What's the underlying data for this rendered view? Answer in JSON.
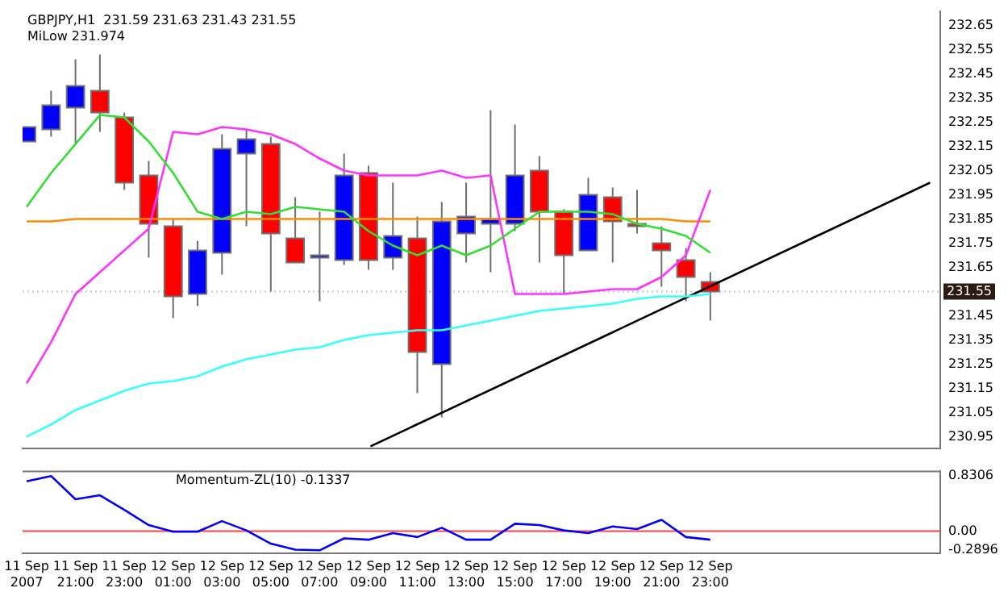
{
  "chart_data": [
    {
      "type": "candlestick",
      "title": "GBPJPY,H1  231.59 231.63 231.43 231.55",
      "subtitle": "MiLow 231.974",
      "x": [
        "2007-09-11T19:00",
        "2007-09-11T20:00",
        "2007-09-11T21:00",
        "2007-09-11T22:00",
        "2007-09-11T23:00",
        "2007-09-12T00:00",
        "2007-09-12T01:00",
        "2007-09-12T02:00",
        "2007-09-12T03:00",
        "2007-09-12T04:00",
        "2007-09-12T05:00",
        "2007-09-12T06:00",
        "2007-09-12T07:00",
        "2007-09-12T08:00",
        "2007-09-12T09:00",
        "2007-09-12T10:00",
        "2007-09-12T11:00",
        "2007-09-12T12:00",
        "2007-09-12T13:00",
        "2007-09-12T14:00",
        "2007-09-12T15:00",
        "2007-09-12T16:00",
        "2007-09-12T17:00",
        "2007-09-12T18:00",
        "2007-09-12T19:00",
        "2007-09-12T20:00",
        "2007-09-12T21:00",
        "2007-09-12T22:00",
        "2007-09-12T23:00"
      ],
      "ohlc": [
        [
          232.17,
          232.23,
          232.17,
          232.23
        ],
        [
          232.22,
          232.38,
          232.19,
          232.32
        ],
        [
          232.31,
          232.51,
          232.16,
          232.4
        ],
        [
          232.38,
          232.53,
          232.21,
          232.29
        ],
        [
          232.27,
          232.29,
          231.97,
          232.0
        ],
        [
          232.03,
          232.09,
          231.69,
          231.83
        ],
        [
          231.82,
          231.85,
          231.44,
          231.53
        ],
        [
          231.54,
          231.76,
          231.49,
          231.72
        ],
        [
          231.71,
          232.2,
          231.62,
          232.14
        ],
        [
          232.12,
          232.22,
          231.82,
          232.18
        ],
        [
          232.16,
          232.19,
          231.55,
          231.79
        ],
        [
          231.77,
          231.94,
          231.67,
          231.67
        ],
        [
          231.69,
          231.88,
          231.51,
          231.7
        ],
        [
          231.68,
          232.12,
          231.66,
          232.03
        ],
        [
          232.04,
          232.07,
          231.64,
          231.68
        ],
        [
          231.69,
          232.0,
          231.64,
          231.78
        ],
        [
          231.77,
          231.86,
          231.13,
          231.3
        ],
        [
          231.25,
          231.92,
          231.03,
          231.84
        ],
        [
          231.79,
          232.0,
          231.67,
          231.86
        ],
        [
          231.83,
          232.3,
          231.63,
          231.85
        ],
        [
          231.83,
          232.24,
          231.8,
          232.03
        ],
        [
          232.05,
          232.11,
          231.67,
          231.88
        ],
        [
          231.88,
          231.89,
          231.54,
          231.7
        ],
        [
          231.72,
          232.02,
          231.72,
          231.95
        ],
        [
          231.94,
          231.98,
          231.67,
          231.84
        ],
        [
          231.83,
          231.97,
          231.79,
          231.82
        ],
        [
          231.75,
          231.82,
          231.57,
          231.72
        ],
        [
          231.68,
          231.73,
          231.51,
          231.61
        ],
        [
          231.59,
          231.63,
          231.43,
          231.55
        ]
      ],
      "colors": [
        "#0000ff",
        "#0000ff",
        "#0000ff",
        "#ff0000",
        "#ff0000",
        "#ff0000",
        "#ff0000",
        "#0000ff",
        "#0000ff",
        "#0000ff",
        "#ff0000",
        "#ff0000",
        "#0000ff",
        "#0000ff",
        "#ff0000",
        "#0000ff",
        "#ff0000",
        "#0000ff",
        "#0000ff",
        "#0000ff",
        "#0000ff",
        "#ff0000",
        "#ff0000",
        "#0000ff",
        "#ff0000",
        "#ff0000",
        "#ff0000",
        "#ff0000",
        "#ff0000"
      ],
      "series": [
        {
          "type": "line",
          "color": "#33dd33",
          "values": [
            231.9,
            232.04,
            232.16,
            232.28,
            232.27,
            232.17,
            232.04,
            231.88,
            231.85,
            231.88,
            231.87,
            231.9,
            231.89,
            231.88,
            231.8,
            231.74,
            231.7,
            231.74,
            231.7,
            231.74,
            231.81,
            231.88,
            231.88,
            231.88,
            231.87,
            231.83,
            231.81,
            231.78,
            231.71
          ]
        },
        {
          "type": "line",
          "color": "#ff33ff",
          "values": [
            231.17,
            231.34,
            231.54,
            231.63,
            231.72,
            231.81,
            232.21,
            232.2,
            232.23,
            232.22,
            232.2,
            232.16,
            232.1,
            232.05,
            232.03,
            232.03,
            232.03,
            232.05,
            232.02,
            232.03,
            231.54,
            231.54,
            231.54,
            231.55,
            231.56,
            231.56,
            231.61,
            231.7,
            231.97
          ]
        },
        {
          "type": "line",
          "color": "#ff8c00",
          "values": [
            231.84,
            231.84,
            231.85,
            231.85,
            231.85,
            231.85,
            231.85,
            231.85,
            231.85,
            231.85,
            231.85,
            231.85,
            231.85,
            231.85,
            231.85,
            231.85,
            231.85,
            231.85,
            231.85,
            231.85,
            231.85,
            231.85,
            231.85,
            231.85,
            231.85,
            231.85,
            231.85,
            231.84,
            231.84
          ]
        },
        {
          "type": "line",
          "color": "#33ffff",
          "values": [
            230.95,
            231.0,
            231.06,
            231.1,
            231.14,
            231.17,
            231.18,
            231.2,
            231.24,
            231.27,
            231.29,
            231.31,
            231.32,
            231.35,
            231.37,
            231.38,
            231.39,
            231.39,
            231.41,
            231.43,
            231.45,
            231.47,
            231.48,
            231.49,
            231.5,
            231.52,
            231.53,
            231.53,
            231.54
          ]
        },
        {
          "type": "line",
          "color": "#000000",
          "x": [
            "2007-09-12T09:05",
            "2007-09-13T08:00"
          ],
          "values": [
            230.91,
            232.0
          ]
        }
      ],
      "xlim": [
        "2007-09-11T18:50",
        "2007-09-13T08:25"
      ],
      "ylim": [
        230.9,
        232.71
      ],
      "yticks": [
        232.65,
        232.55,
        232.45,
        232.35,
        232.25,
        232.15,
        232.05,
        231.95,
        231.85,
        231.75,
        231.65,
        231.45,
        231.35,
        231.25,
        231.15,
        231.05,
        230.95
      ],
      "ref_lines": [
        {
          "axis": "y",
          "value": 231.55,
          "label": "231.55",
          "color": "#b4c8dc",
          "line_style": "dotted"
        }
      ],
      "tick_labels": "y"
    },
    {
      "type": "line",
      "title": "Momentum-ZL(10) -0.1337",
      "color": "#0000ff",
      "x": [
        "2007-09-11T19:00",
        "2007-09-11T20:00",
        "2007-09-11T21:00",
        "2007-09-11T22:00",
        "2007-09-11T23:00",
        "2007-09-12T00:00",
        "2007-09-12T01:00",
        "2007-09-12T02:00",
        "2007-09-12T03:00",
        "2007-09-12T04:00",
        "2007-09-12T05:00",
        "2007-09-12T06:00",
        "2007-09-12T07:00",
        "2007-09-12T08:00",
        "2007-09-12T09:00",
        "2007-09-12T10:00",
        "2007-09-12T11:00",
        "2007-09-12T12:00",
        "2007-09-12T13:00",
        "2007-09-12T14:00",
        "2007-09-12T15:00",
        "2007-09-12T16:00",
        "2007-09-12T17:00",
        "2007-09-12T18:00",
        "2007-09-12T19:00",
        "2007-09-12T20:00",
        "2007-09-12T21:00",
        "2007-09-12T22:00",
        "2007-09-12T23:00"
      ],
      "values": [
        0.75,
        0.83,
        0.48,
        0.54,
        0.32,
        0.09,
        -0.01,
        -0.01,
        0.15,
        0.01,
        -0.19,
        -0.28,
        -0.29,
        -0.11,
        -0.13,
        -0.03,
        -0.09,
        0.05,
        -0.13,
        -0.13,
        0.11,
        0.09,
        0.01,
        -0.03,
        0.07,
        0.03,
        0.17,
        -0.09,
        -0.13
      ],
      "xlim": [
        "2007-09-11T18:50",
        "2007-09-13T08:25"
      ],
      "xticks": [
        {
          "value": "2007-09-11T19:00",
          "label": "11 Sep 2007"
        },
        {
          "value": "2007-09-11T21:00",
          "label": "11 Sep 21:00"
        },
        {
          "value": "2007-09-11T23:00",
          "label": "11 Sep 23:00"
        },
        {
          "value": "2007-09-12T01:00",
          "label": "12 Sep 01:00"
        },
        {
          "value": "2007-09-12T03:00",
          "label": "12 Sep 03:00"
        },
        {
          "value": "2007-09-12T05:00",
          "label": "12 Sep 05:00"
        },
        {
          "value": "2007-09-12T07:00",
          "label": "12 Sep 07:00"
        },
        {
          "value": "2007-09-12T09:00",
          "label": "12 Sep 09:00"
        },
        {
          "value": "2007-09-12T11:00",
          "label": "12 Sep 11:00"
        },
        {
          "value": "2007-09-12T13:00",
          "label": "12 Sep 13:00"
        },
        {
          "value": "2007-09-12T15:00",
          "label": "12 Sep 15:00"
        },
        {
          "value": "2007-09-12T17:00",
          "label": "12 Sep 17:00"
        },
        {
          "value": "2007-09-12T19:00",
          "label": "12 Sep 19:00"
        },
        {
          "value": "2007-09-12T21:00",
          "label": "12 Sep 21:00"
        },
        {
          "value": "2007-09-12T23:00",
          "label": "12 Sep 23:00"
        }
      ],
      "ylim": [
        -0.33,
        0.91
      ],
      "yticks": [
        {
          "value": 0.8306,
          "label": "0.8306"
        },
        {
          "value": 0,
          "label": "0.00"
        },
        {
          "value": -0.2896,
          "label": "-0.2896"
        }
      ],
      "ref_lines": [
        {
          "axis": "y",
          "value": 0,
          "color": "#ff4040"
        }
      ]
    }
  ]
}
